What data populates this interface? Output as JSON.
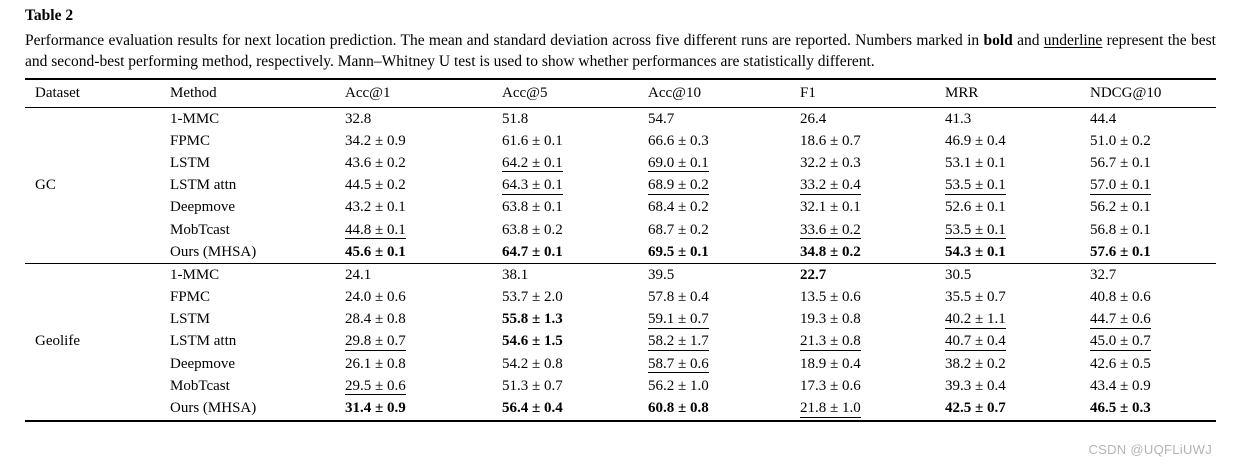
{
  "title": "Table 2",
  "caption": {
    "segments": [
      {
        "text": "Performance evaluation results for next location prediction. The mean and standard deviation across five different runs are reported. Numbers marked in ",
        "style": "normal"
      },
      {
        "text": "bold",
        "style": "bold"
      },
      {
        "text": " and ",
        "style": "normal"
      },
      {
        "text": "underline",
        "style": "underline"
      },
      {
        "text": " represent the best and second-best performing method, respectively. Mann–Whitney U test is used to show whether performances are statistically different.",
        "style": "normal"
      }
    ]
  },
  "watermark": "CSDN @UQFLiUWJ",
  "colors": {
    "text": "#000000",
    "background": "#ffffff",
    "watermark": "#b4b4b4"
  },
  "table": {
    "columns": [
      "Dataset",
      "Method",
      "Acc@1",
      "Acc@5",
      "Acc@10",
      "F1",
      "MRR",
      "NDCG@10"
    ],
    "sections": [
      {
        "dataset": "GC",
        "rows": [
          {
            "method": "1-MMC",
            "cells": [
              {
                "text": "32.8",
                "style": "normal"
              },
              {
                "text": "51.8",
                "style": "normal"
              },
              {
                "text": "54.7",
                "style": "normal"
              },
              {
                "text": "26.4",
                "style": "normal"
              },
              {
                "text": "41.3",
                "style": "normal"
              },
              {
                "text": "44.4",
                "style": "normal"
              }
            ]
          },
          {
            "method": "FPMC",
            "cells": [
              {
                "text": "34.2 ± 0.9",
                "style": "normal"
              },
              {
                "text": "61.6 ± 0.1",
                "style": "normal"
              },
              {
                "text": "66.6 ± 0.3",
                "style": "normal"
              },
              {
                "text": "18.6 ± 0.7",
                "style": "normal"
              },
              {
                "text": "46.9 ± 0.4",
                "style": "normal"
              },
              {
                "text": "51.0 ± 0.2",
                "style": "normal"
              }
            ]
          },
          {
            "method": "LSTM",
            "cells": [
              {
                "text": "43.6 ± 0.2",
                "style": "normal"
              },
              {
                "text": "64.2 ± 0.1",
                "style": "underline"
              },
              {
                "text": "69.0 ± 0.1",
                "style": "underline"
              },
              {
                "text": "32.2 ± 0.3",
                "style": "normal"
              },
              {
                "text": "53.1 ± 0.1",
                "style": "normal"
              },
              {
                "text": "56.7 ± 0.1",
                "style": "normal"
              }
            ]
          },
          {
            "method": "LSTM attn",
            "cells": [
              {
                "text": "44.5 ± 0.2",
                "style": "normal"
              },
              {
                "text": "64.3 ± 0.1",
                "style": "underline"
              },
              {
                "text": "68.9 ± 0.2",
                "style": "underline"
              },
              {
                "text": "33.2 ± 0.4",
                "style": "underline"
              },
              {
                "text": "53.5 ± 0.1",
                "style": "underline"
              },
              {
                "text": "57.0 ± 0.1",
                "style": "underline"
              }
            ]
          },
          {
            "method": "Deepmove",
            "cells": [
              {
                "text": "43.2 ± 0.1",
                "style": "normal"
              },
              {
                "text": "63.8 ± 0.1",
                "style": "normal"
              },
              {
                "text": "68.4 ± 0.2",
                "style": "normal"
              },
              {
                "text": "32.1 ± 0.1",
                "style": "normal"
              },
              {
                "text": "52.6 ± 0.1",
                "style": "normal"
              },
              {
                "text": "56.2 ± 0.1",
                "style": "normal"
              }
            ]
          },
          {
            "method": "MobTcast",
            "cells": [
              {
                "text": "44.8 ± 0.1",
                "style": "underline"
              },
              {
                "text": "63.8 ± 0.2",
                "style": "normal"
              },
              {
                "text": "68.7 ± 0.2",
                "style": "normal"
              },
              {
                "text": "33.6 ± 0.2",
                "style": "underline"
              },
              {
                "text": "53.5 ± 0.1",
                "style": "underline"
              },
              {
                "text": "56.8 ± 0.1",
                "style": "normal"
              }
            ]
          },
          {
            "method": "Ours (MHSA)",
            "cells": [
              {
                "text": "45.6 ± 0.1",
                "style": "bold"
              },
              {
                "text": "64.7 ± 0.1",
                "style": "bold"
              },
              {
                "text": "69.5 ± 0.1",
                "style": "bold"
              },
              {
                "text": "34.8 ± 0.2",
                "style": "bold"
              },
              {
                "text": "54.3 ± 0.1",
                "style": "bold"
              },
              {
                "text": "57.6 ± 0.1",
                "style": "bold"
              }
            ]
          }
        ]
      },
      {
        "dataset": "Geolife",
        "rows": [
          {
            "method": "1-MMC",
            "cells": [
              {
                "text": "24.1",
                "style": "normal"
              },
              {
                "text": "38.1",
                "style": "normal"
              },
              {
                "text": "39.5",
                "style": "normal"
              },
              {
                "text": "22.7",
                "style": "bold"
              },
              {
                "text": "30.5",
                "style": "normal"
              },
              {
                "text": "32.7",
                "style": "normal"
              }
            ]
          },
          {
            "method": "FPMC",
            "cells": [
              {
                "text": "24.0 ± 0.6",
                "style": "normal"
              },
              {
                "text": "53.7 ± 2.0",
                "style": "normal"
              },
              {
                "text": "57.8 ± 0.4",
                "style": "normal"
              },
              {
                "text": "13.5 ± 0.6",
                "style": "normal"
              },
              {
                "text": "35.5 ± 0.7",
                "style": "normal"
              },
              {
                "text": "40.8 ± 0.6",
                "style": "normal"
              }
            ]
          },
          {
            "method": "LSTM",
            "cells": [
              {
                "text": "28.4 ± 0.8",
                "style": "normal"
              },
              {
                "text": "55.8 ± 1.3",
                "style": "bold"
              },
              {
                "text": "59.1 ± 0.7",
                "style": "underline"
              },
              {
                "text": "19.3 ± 0.8",
                "style": "normal"
              },
              {
                "text": "40.2 ± 1.1",
                "style": "underline"
              },
              {
                "text": "44.7 ± 0.6",
                "style": "underline"
              }
            ]
          },
          {
            "method": "LSTM attn",
            "cells": [
              {
                "text": "29.8 ± 0.7",
                "style": "underline"
              },
              {
                "text": "54.6 ± 1.5",
                "style": "bold"
              },
              {
                "text": "58.2 ± 1.7",
                "style": "underline"
              },
              {
                "text": "21.3 ± 0.8",
                "style": "underline"
              },
              {
                "text": "40.7 ± 0.4",
                "style": "underline"
              },
              {
                "text": "45.0 ± 0.7",
                "style": "underline"
              }
            ]
          },
          {
            "method": "Deepmove",
            "cells": [
              {
                "text": "26.1 ± 0.8",
                "style": "normal"
              },
              {
                "text": "54.2 ± 0.8",
                "style": "normal"
              },
              {
                "text": "58.7 ± 0.6",
                "style": "underline"
              },
              {
                "text": "18.9 ± 0.4",
                "style": "normal"
              },
              {
                "text": "38.2 ± 0.2",
                "style": "normal"
              },
              {
                "text": "42.6 ± 0.5",
                "style": "normal"
              }
            ]
          },
          {
            "method": "MobTcast",
            "cells": [
              {
                "text": "29.5 ± 0.6",
                "style": "underline"
              },
              {
                "text": "51.3 ± 0.7",
                "style": "normal"
              },
              {
                "text": "56.2 ± 1.0",
                "style": "normal"
              },
              {
                "text": "17.3 ± 0.6",
                "style": "normal"
              },
              {
                "text": "39.3 ± 0.4",
                "style": "normal"
              },
              {
                "text": "43.4 ± 0.9",
                "style": "normal"
              }
            ]
          },
          {
            "method": "Ours (MHSA)",
            "cells": [
              {
                "text": "31.4 ± 0.9",
                "style": "bold"
              },
              {
                "text": "56.4 ± 0.4",
                "style": "bold"
              },
              {
                "text": "60.8 ± 0.8",
                "style": "bold"
              },
              {
                "text": "21.8 ± 1.0",
                "style": "underline"
              },
              {
                "text": "42.5 ± 0.7",
                "style": "bold"
              },
              {
                "text": "46.5 ± 0.3",
                "style": "bold"
              }
            ]
          }
        ]
      }
    ]
  }
}
